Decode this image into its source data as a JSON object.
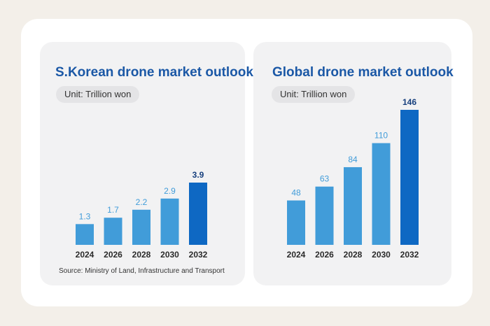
{
  "chart_data": [
    {
      "type": "bar",
      "title": "S.Korean drone market outlook",
      "subtitle": "Unit: Trillion won",
      "categories": [
        "2024",
        "2026",
        "2028",
        "2030",
        "2032"
      ],
      "values": [
        1.3,
        1.7,
        2.2,
        2.9,
        3.9
      ],
      "value_labels": [
        "1.3",
        "1.7",
        "2.2",
        "2.9",
        "3.9"
      ],
      "highlight_index": 4,
      "source": "Source: Ministry of Land, Infrastructure and Transport",
      "colors": {
        "bar": "#419cd9",
        "highlight": "#0e68c3",
        "label": "#419cd9",
        "highlight_label": "#163f7d"
      }
    },
    {
      "type": "bar",
      "title": "Global drone market outlook",
      "subtitle": "Unit: Trillion won",
      "categories": [
        "2024",
        "2026",
        "2028",
        "2030",
        "2032"
      ],
      "values": [
        48,
        63,
        84,
        110,
        146
      ],
      "value_labels": [
        "48",
        "63",
        "84",
        "110",
        "146"
      ],
      "highlight_index": 4,
      "colors": {
        "bar": "#419cd9",
        "highlight": "#0e68c3",
        "label": "#419cd9",
        "highlight_label": "#163f7d"
      }
    }
  ]
}
